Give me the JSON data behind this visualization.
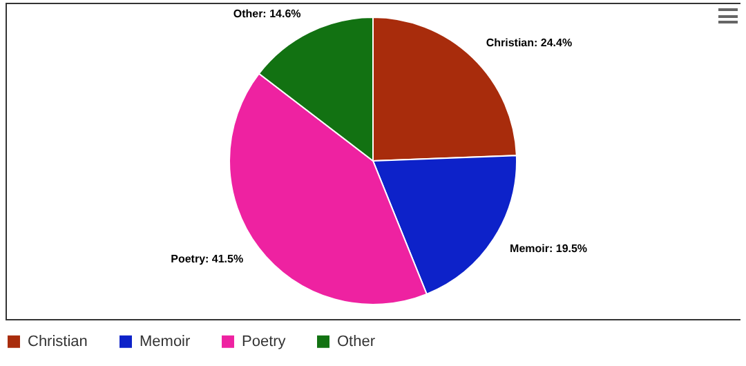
{
  "chart_data": {
    "type": "pie",
    "categories": [
      "Christian",
      "Memoir",
      "Poetry",
      "Other"
    ],
    "values": [
      24.4,
      19.5,
      41.5,
      14.6
    ],
    "colors": [
      "#a82c0c",
      "#0d22c9",
      "#ee22a1",
      "#127212"
    ],
    "value_labels": [
      "Christian: 24.4%",
      "Memoir: 19.5%",
      "Poetry: 41.5%",
      "Other: 14.6%"
    ],
    "legend": "bottom"
  }
}
